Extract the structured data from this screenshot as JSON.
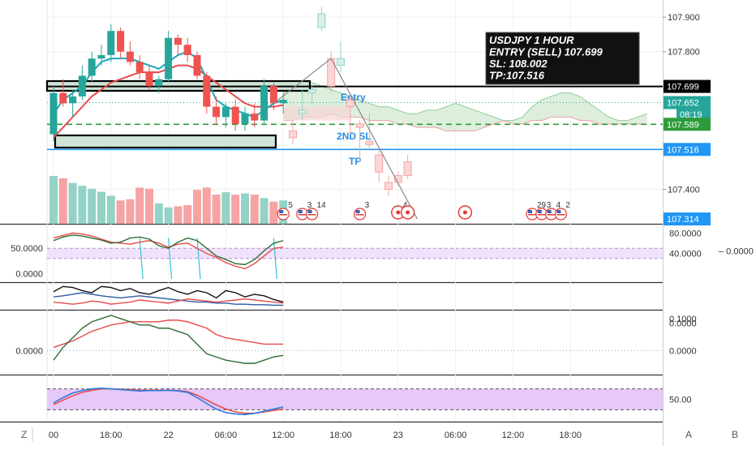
{
  "chart_data": {
    "type": "candlestick",
    "symbol_info": [
      "USDJPY 1 HOUR",
      "ENTRY (SELL) 107.699",
      "SL: 108.002",
      "TP:107.516"
    ],
    "colors": {
      "up": "#26a69a",
      "down": "#ef5350",
      "up_vol": "#94d2c6",
      "down_vol": "#f5a3a3",
      "entry": "#000000",
      "tp": "#2196f3",
      "sl": "#2e9b3a",
      "ma_teal": "#1aa7b8",
      "ma_red": "#e84a4a",
      "stoch_band": "#e3c6f5",
      "ichimoku": "#d9ecd9",
      "ichimoku_red": "#f7d6d6"
    },
    "price_axis": {
      "min": 107.3,
      "max": 107.95,
      "ticks": [
        {
          "v": 107.9,
          "t": "107.900"
        },
        {
          "v": 107.8,
          "t": "107.800"
        },
        {
          "v": 107.4,
          "t": "107.400"
        }
      ]
    },
    "price_labels": [
      {
        "t": "107.699",
        "v": 107.699,
        "bg": "#000000",
        "fg": "#ffffff"
      },
      {
        "t": "107.652",
        "v": 107.652,
        "bg": "#26a69a",
        "fg": "#ffffff"
      },
      {
        "t": "08:19",
        "v": 107.618,
        "bg": "#26a69a",
        "fg": "#ffffff"
      },
      {
        "t": "107.589",
        "v": 107.589,
        "bg": "#2e9b3a",
        "fg": "#ffffff"
      },
      {
        "t": "107.516",
        "v": 107.516,
        "bg": "#2196f3",
        "fg": "#ffffff"
      },
      {
        "t": "107.314",
        "v": 107.314,
        "bg": "#2196f3",
        "fg": "#ffffff"
      }
    ],
    "hlines": [
      {
        "name": "entry",
        "price": 107.699,
        "label": "Entry",
        "style": "solid"
      },
      {
        "name": "second-sl",
        "price": 107.589,
        "label": "2ND SL",
        "style": "dashed"
      },
      {
        "name": "tp",
        "price": 107.516,
        "label": "TP",
        "style": "solid"
      },
      {
        "name": "current",
        "price": 107.652,
        "label": "",
        "style": "dotted"
      }
    ],
    "time_axis": [
      {
        "t": "00",
        "i": 0
      },
      {
        "t": "18:00",
        "i": 6
      },
      {
        "t": "22",
        "i": 12
      },
      {
        "t": "06:00",
        "i": 18
      },
      {
        "t": "12:00",
        "i": 24
      },
      {
        "t": "18:00",
        "i": 30
      },
      {
        "t": "23",
        "i": 36
      },
      {
        "t": "06:00",
        "i": 42
      },
      {
        "t": "12:00",
        "i": 48
      },
      {
        "t": "18:00",
        "i": 54
      }
    ],
    "candles": [
      {
        "o": 107.56,
        "h": 107.7,
        "l": 107.54,
        "c": 107.68
      },
      {
        "o": 107.68,
        "h": 107.72,
        "l": 107.64,
        "c": 107.65
      },
      {
        "o": 107.65,
        "h": 107.69,
        "l": 107.61,
        "c": 107.67
      },
      {
        "o": 107.67,
        "h": 107.76,
        "l": 107.66,
        "c": 107.73
      },
      {
        "o": 107.73,
        "h": 107.8,
        "l": 107.71,
        "c": 107.78
      },
      {
        "o": 107.78,
        "h": 107.82,
        "l": 107.76,
        "c": 107.79
      },
      {
        "o": 107.79,
        "h": 107.88,
        "l": 107.77,
        "c": 107.86
      },
      {
        "o": 107.86,
        "h": 107.87,
        "l": 107.78,
        "c": 107.8
      },
      {
        "o": 107.8,
        "h": 107.83,
        "l": 107.76,
        "c": 107.77
      },
      {
        "o": 107.77,
        "h": 107.79,
        "l": 107.72,
        "c": 107.74
      },
      {
        "o": 107.74,
        "h": 107.76,
        "l": 107.69,
        "c": 107.7
      },
      {
        "o": 107.7,
        "h": 107.73,
        "l": 107.68,
        "c": 107.72
      },
      {
        "o": 107.72,
        "h": 107.86,
        "l": 107.71,
        "c": 107.84
      },
      {
        "o": 107.84,
        "h": 107.85,
        "l": 107.79,
        "c": 107.82
      },
      {
        "o": 107.82,
        "h": 107.84,
        "l": 107.77,
        "c": 107.79
      },
      {
        "o": 107.79,
        "h": 107.8,
        "l": 107.72,
        "c": 107.73
      },
      {
        "o": 107.73,
        "h": 107.74,
        "l": 107.62,
        "c": 107.64
      },
      {
        "o": 107.64,
        "h": 107.67,
        "l": 107.59,
        "c": 107.61
      },
      {
        "o": 107.61,
        "h": 107.65,
        "l": 107.58,
        "c": 107.64
      },
      {
        "o": 107.64,
        "h": 107.66,
        "l": 107.57,
        "c": 107.59
      },
      {
        "o": 107.59,
        "h": 107.64,
        "l": 107.57,
        "c": 107.62
      },
      {
        "o": 107.62,
        "h": 107.65,
        "l": 107.58,
        "c": 107.6
      },
      {
        "o": 107.6,
        "h": 107.72,
        "l": 107.59,
        "c": 107.7
      },
      {
        "o": 107.7,
        "h": 107.71,
        "l": 107.63,
        "c": 107.65
      },
      {
        "o": 107.65,
        "h": 107.68,
        "l": 107.62,
        "c": 107.66
      }
    ],
    "projection_candles": [
      {
        "i": 25,
        "o": 107.57,
        "h": 107.6,
        "l": 107.53,
        "c": 107.55
      },
      {
        "i": 26,
        "o": 107.62,
        "h": 107.69,
        "l": 107.6,
        "c": 107.63
      },
      {
        "i": 27,
        "o": 107.68,
        "h": 107.7,
        "l": 107.65,
        "c": 107.69
      },
      {
        "i": 28,
        "o": 107.87,
        "h": 107.93,
        "l": 107.86,
        "c": 107.91
      },
      {
        "i": 29,
        "o": 107.78,
        "h": 107.8,
        "l": 107.68,
        "c": 107.7
      },
      {
        "i": 30,
        "o": 107.76,
        "h": 107.83,
        "l": 107.74,
        "c": 107.78
      },
      {
        "i": 31,
        "o": 107.66,
        "h": 107.68,
        "l": 107.56,
        "c": 107.64
      },
      {
        "i": 32,
        "o": 107.59,
        "h": 107.6,
        "l": 107.48,
        "c": 107.58
      },
      {
        "i": 33,
        "o": 107.54,
        "h": 107.62,
        "l": 107.52,
        "c": 107.53
      },
      {
        "i": 34,
        "o": 107.5,
        "h": 107.52,
        "l": 107.42,
        "c": 107.45
      },
      {
        "i": 35,
        "o": 107.42,
        "h": 107.44,
        "l": 107.38,
        "c": 107.4
      },
      {
        "i": 36,
        "o": 107.44,
        "h": 107.45,
        "l": 107.41,
        "c": 107.42
      },
      {
        "i": 37,
        "o": 107.48,
        "h": 107.5,
        "l": 107.43,
        "c": 107.44
      }
    ],
    "projection_path": [
      {
        "i": 23,
        "p": 107.65
      },
      {
        "i": 29,
        "p": 107.78
      },
      {
        "i": 38,
        "p": 107.314
      }
    ],
    "ma_teal": [
      107.62,
      107.66,
      107.68,
      107.7,
      107.74,
      107.77,
      107.78,
      107.78,
      107.78,
      107.77,
      107.76,
      107.75,
      107.77,
      107.79,
      107.8,
      107.78,
      107.72,
      107.66,
      107.64,
      107.63,
      107.62,
      107.61,
      107.63,
      107.65,
      107.66
    ],
    "ma_red": [
      107.55,
      107.58,
      107.61,
      107.64,
      107.67,
      107.69,
      107.71,
      107.72,
      107.73,
      107.74,
      107.74,
      107.74,
      107.75,
      107.76,
      107.76,
      107.75,
      107.73,
      107.71,
      107.69,
      107.67,
      107.65,
      107.64,
      107.64,
      107.64,
      107.645
    ],
    "ichimoku_cloud_top": [
      107.68,
      107.7,
      107.71,
      107.71,
      107.7,
      107.69,
      107.68,
      107.67,
      107.66,
      107.65,
      107.64,
      107.64,
      107.63,
      107.62,
      107.62,
      107.63,
      107.63,
      107.64,
      107.65,
      107.64,
      107.63,
      107.62,
      107.61,
      107.6,
      107.6,
      107.61,
      107.64,
      107.66,
      107.67,
      107.68,
      107.68,
      107.67,
      107.65,
      107.63,
      107.61,
      107.6,
      107.6,
      107.61,
      107.62
    ],
    "ichimoku_cloud_bot": [
      107.6,
      107.6,
      107.61,
      107.61,
      107.61,
      107.62,
      107.61,
      107.61,
      107.61,
      107.6,
      107.6,
      107.6,
      107.59,
      107.59,
      107.58,
      107.58,
      107.58,
      107.57,
      107.57,
      107.57,
      107.57,
      107.58,
      107.59,
      107.6,
      107.59,
      107.59,
      107.6,
      107.6,
      107.61,
      107.61,
      107.61,
      107.6,
      107.6,
      107.59,
      107.59,
      107.59,
      107.59,
      107.59,
      107.59
    ],
    "ichimoku_span_start": 24,
    "volume": [
      82,
      78,
      70,
      65,
      60,
      55,
      48,
      40,
      42,
      62,
      60,
      35,
      28,
      30,
      32,
      58,
      62,
      50,
      54,
      50,
      52,
      50,
      44,
      38,
      40
    ],
    "volume_max": 100,
    "event_markers": [
      {
        "i": 24,
        "label": "5",
        "type": "flag"
      },
      {
        "i": 26,
        "label": "3",
        "type": "flag"
      },
      {
        "i": 27,
        "label": "14",
        "type": "flag"
      },
      {
        "i": 32,
        "label": "3",
        "type": "flag"
      },
      {
        "i": 36,
        "label": "4",
        "type": "circle"
      },
      {
        "i": 37,
        "label": "",
        "type": "circle"
      },
      {
        "i": 43,
        "label": "",
        "type": "circle"
      },
      {
        "i": 50,
        "label": "29",
        "type": "flag"
      },
      {
        "i": 51,
        "label": "3",
        "type": "flag"
      },
      {
        "i": 52,
        "label": "4",
        "type": "flag"
      },
      {
        "i": 53,
        "label": "2",
        "type": "flag"
      }
    ],
    "pane1": {
      "left_ticks": [
        {
          "v": 50,
          "t": "50.0000"
        },
        {
          "v": 0,
          "t": "0.0000"
        }
      ],
      "right_ticks": [
        {
          "v": 80,
          "t": "80.0000"
        },
        {
          "v": 40,
          "t": "40.0000"
        }
      ],
      "far_right_label": "0.0000",
      "band": [
        30,
        50
      ],
      "red": [
        70,
        75,
        80,
        78,
        74,
        68,
        62,
        60,
        58,
        62,
        65,
        60,
        52,
        58,
        60,
        50,
        40,
        32,
        22,
        15,
        10,
        20,
        35,
        50,
        52
      ],
      "green": [
        65,
        72,
        76,
        74,
        70,
        66,
        60,
        62,
        70,
        72,
        68,
        55,
        50,
        62,
        70,
        65,
        50,
        35,
        28,
        20,
        18,
        28,
        45,
        60,
        65
      ],
      "cyan_spikes": [
        {
          "i": 9,
          "from": 70,
          "to": -10
        },
        {
          "i": 12,
          "from": 70,
          "to": -10
        },
        {
          "i": 15,
          "from": 70,
          "to": -10
        },
        {
          "i": 23,
          "from": 70,
          "to": -10
        }
      ]
    },
    "pane2": {
      "right_ticks": [
        {
          "v": 0,
          "t": "0.0000"
        }
      ],
      "black": [
        60,
        70,
        68,
        62,
        58,
        70,
        68,
        62,
        66,
        58,
        55,
        62,
        68,
        60,
        55,
        62,
        58,
        48,
        62,
        58,
        50,
        55,
        52,
        45,
        40
      ],
      "red": [
        40,
        38,
        36,
        38,
        42,
        40,
        36,
        38,
        40,
        44,
        42,
        40,
        38,
        42,
        46,
        44,
        42,
        40,
        42,
        44,
        46,
        44,
        42,
        40,
        38
      ],
      "blue": [
        50,
        52,
        55,
        58,
        55,
        52,
        50,
        48,
        50,
        52,
        50,
        48,
        46,
        44,
        42,
        40,
        40,
        38,
        38,
        36,
        36,
        35,
        35,
        34,
        34
      ]
    },
    "pane3": {
      "left_ticks": [
        {
          "v": 0,
          "t": "0.0000"
        }
      ],
      "right_ticks": [
        {
          "v": 0.1,
          "t": "0.1000"
        },
        {
          "v": 0,
          "t": "0.0000"
        }
      ],
      "green": [
        -0.03,
        0.01,
        0.04,
        0.07,
        0.09,
        0.1,
        0.11,
        0.1,
        0.09,
        0.08,
        0.08,
        0.07,
        0.07,
        0.06,
        0.05,
        0.02,
        -0.01,
        -0.02,
        -0.03,
        -0.035,
        -0.04,
        -0.04,
        -0.03,
        -0.02,
        -0.015
      ],
      "red": [
        0.01,
        0.02,
        0.03,
        0.045,
        0.06,
        0.07,
        0.08,
        0.085,
        0.09,
        0.09,
        0.09,
        0.09,
        0.095,
        0.095,
        0.09,
        0.08,
        0.07,
        0.05,
        0.04,
        0.035,
        0.03,
        0.025,
        0.02,
        0.02,
        0.02
      ]
    },
    "pane4": {
      "right_ticks": [
        {
          "v": 50,
          "t": "50.00"
        }
      ],
      "band": [
        20,
        80
      ],
      "blue": [
        40,
        55,
        68,
        75,
        80,
        82,
        80,
        78,
        76,
        74,
        75,
        75,
        76,
        74,
        70,
        55,
        38,
        22,
        12,
        8,
        6,
        10,
        16,
        22,
        28
      ],
      "red": [
        35,
        48,
        60,
        70,
        76,
        80,
        80,
        79,
        78,
        76,
        76,
        76,
        76,
        75,
        72,
        62,
        48,
        34,
        22,
        14,
        10,
        10,
        14,
        18,
        22
      ]
    },
    "corner_buttons": {
      "z": "Z",
      "a": "A",
      "b": "B"
    },
    "legend": "none",
    "grid": true
  }
}
